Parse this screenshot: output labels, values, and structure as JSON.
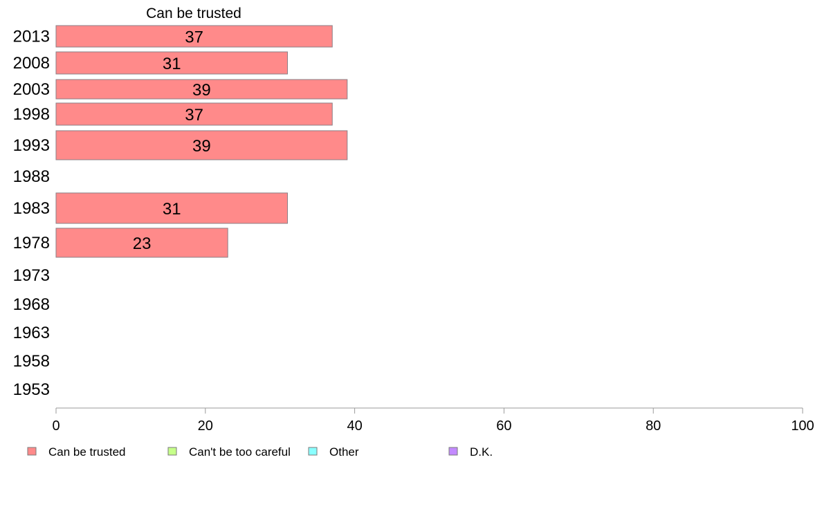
{
  "chart_data": {
    "type": "bar",
    "orientation": "horizontal",
    "title": "Can be trusted",
    "categories": [
      "2013",
      "2008",
      "2003",
      "1998",
      "1993",
      "1988",
      "1983",
      "1978",
      "1973",
      "1968",
      "1963",
      "1958",
      "1953"
    ],
    "series": [
      {
        "name": "Can be trusted",
        "color": "#ff8a8a",
        "values": [
          37,
          31,
          39,
          37,
          39,
          null,
          31,
          23,
          null,
          null,
          null,
          null,
          null
        ]
      }
    ],
    "xlim": [
      0,
      100
    ],
    "xticks": [
      0,
      20,
      40,
      60,
      80,
      100
    ],
    "grid": false,
    "legend": {
      "placement": "bottom",
      "entries": [
        {
          "label": "Can be trusted",
          "color": "#ff8a8a"
        },
        {
          "label": "Can't be too careful",
          "color": "#c6ff8a"
        },
        {
          "label": "Other",
          "color": "#8affff"
        },
        {
          "label": "D.K.",
          "color": "#c38aff"
        }
      ]
    }
  }
}
